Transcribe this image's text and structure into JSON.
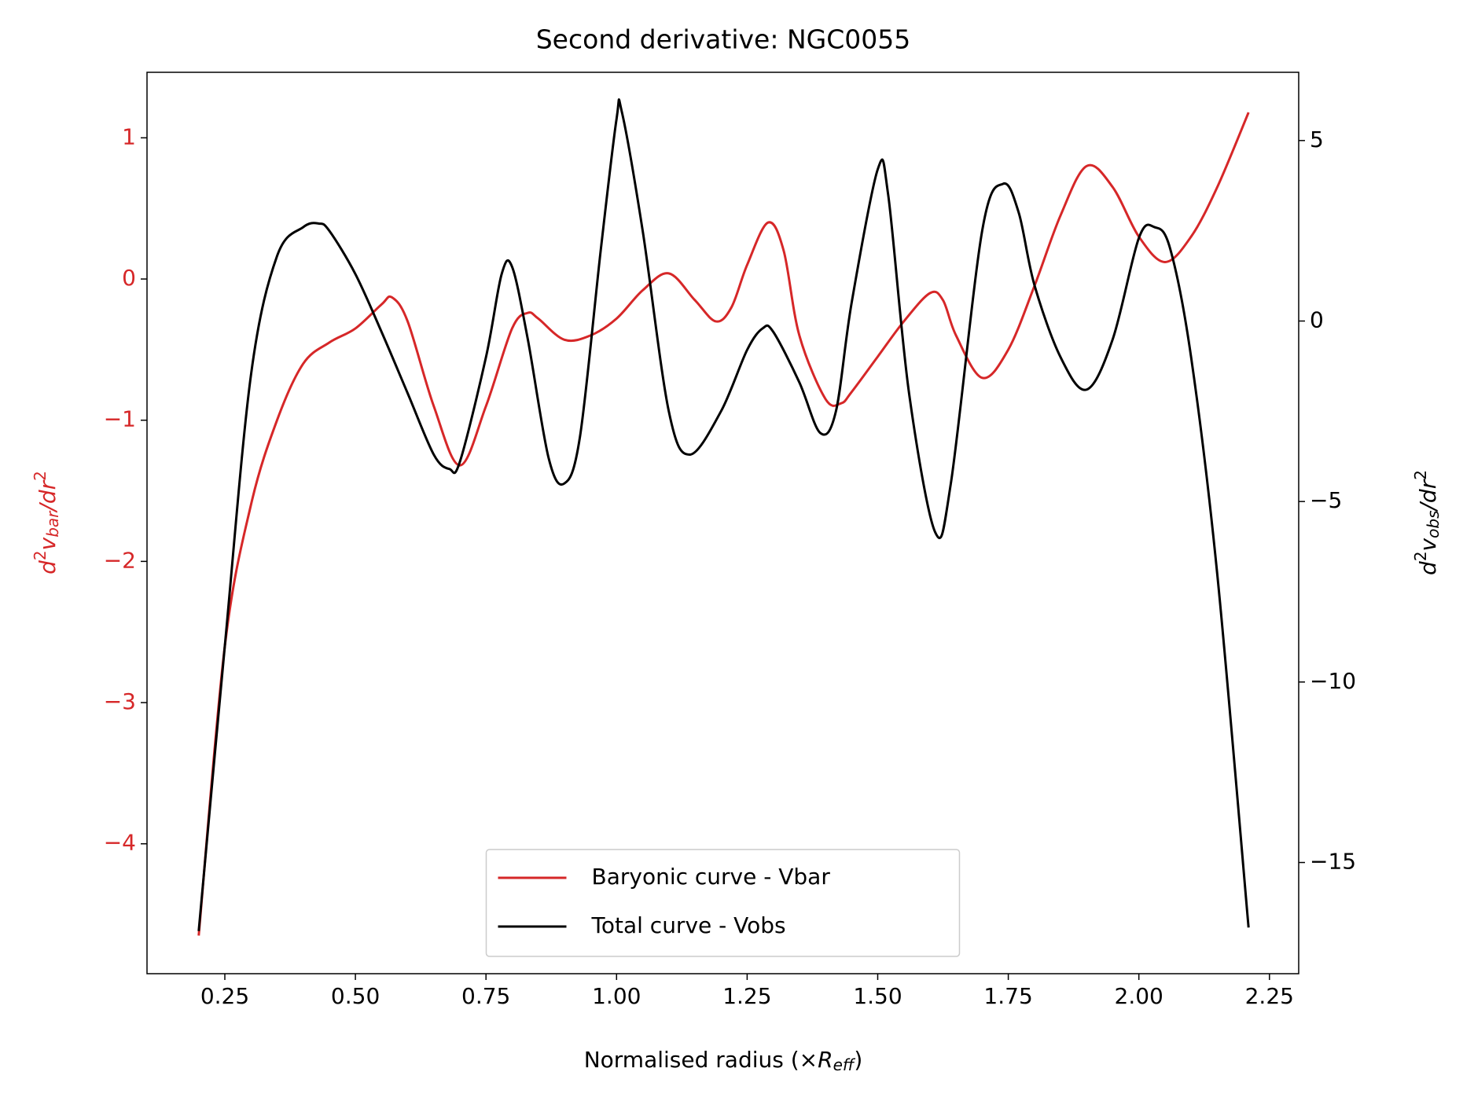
{
  "chart_data": {
    "type": "line",
    "title": "Second derivative: NGC0055",
    "xlabel": [
      "Normalised radius (×",
      "R",
      "eff",
      ")"
    ],
    "ylabel": [
      "d",
      "2",
      "v",
      "bar",
      "/dr",
      "2"
    ],
    "y2label": [
      "d",
      "2",
      "v",
      "obs",
      "/dr",
      "2"
    ],
    "xlim": [
      0.101,
      2.306
    ],
    "ylim": [
      -4.92,
      1.464
    ],
    "y2lim": [
      -18.08,
      6.89
    ],
    "xticks": [
      {
        "value": 0.25,
        "label": "0.25"
      },
      {
        "value": 0.5,
        "label": "0.50"
      },
      {
        "value": 0.75,
        "label": "0.75"
      },
      {
        "value": 1,
        "label": "1.00"
      },
      {
        "value": 1.25,
        "label": "1.25"
      },
      {
        "value": 1.5,
        "label": "1.50"
      },
      {
        "value": 1.75,
        "label": "1.75"
      },
      {
        "value": 2,
        "label": "2.00"
      },
      {
        "value": 2.25,
        "label": "2.25"
      }
    ],
    "yticks": [
      {
        "value": -4,
        "label": "−4"
      },
      {
        "value": -3,
        "label": "−3"
      },
      {
        "value": -2,
        "label": "−2"
      },
      {
        "value": -1,
        "label": "−1"
      },
      0,
      1
    ],
    "y2ticks": [
      {
        "value": -15,
        "label": "−15"
      },
      {
        "value": -10,
        "label": "−10"
      },
      {
        "value": -5,
        "label": "−5"
      },
      0,
      5
    ],
    "legend": "lower center",
    "series": [
      {
        "name": "Baryonic curve - Vbar",
        "color": "#d62728",
        "axis": "y",
        "x": [
          0.2,
          0.25,
          0.3,
          0.35,
          0.4,
          0.45,
          0.5,
          0.55,
          0.57,
          0.6,
          0.65,
          0.7,
          0.75,
          0.8,
          0.83,
          0.85,
          0.9,
          0.95,
          1.0,
          1.05,
          1.1,
          1.15,
          1.19,
          1.22,
          1.25,
          1.29,
          1.32,
          1.35,
          1.4,
          1.43,
          1.45,
          1.5,
          1.55,
          1.6,
          1.625,
          1.65,
          1.7,
          1.75,
          1.8,
          1.85,
          1.9,
          1.95,
          2.0,
          2.05,
          2.1,
          2.15,
          2.21
        ],
        "values": [
          -4.65,
          -2.6,
          -1.6,
          -1.0,
          -0.6,
          -0.45,
          -0.35,
          -0.18,
          -0.13,
          -0.3,
          -0.9,
          -1.32,
          -0.9,
          -0.35,
          -0.24,
          -0.28,
          -0.43,
          -0.4,
          -0.28,
          -0.08,
          0.04,
          -0.15,
          -0.3,
          -0.2,
          0.1,
          0.4,
          0.2,
          -0.4,
          -0.85,
          -0.88,
          -0.8,
          -0.55,
          -0.3,
          -0.1,
          -0.15,
          -0.4,
          -0.7,
          -0.5,
          -0.05,
          0.45,
          0.8,
          0.65,
          0.3,
          0.12,
          0.3,
          0.65,
          1.18
        ]
      },
      {
        "name": "Total curve - Vobs",
        "color": "#000000",
        "axis": "y2",
        "x": [
          0.2,
          0.25,
          0.3,
          0.35,
          0.4,
          0.43,
          0.45,
          0.5,
          0.55,
          0.6,
          0.65,
          0.68,
          0.7,
          0.75,
          0.78,
          0.8,
          0.83,
          0.87,
          0.9,
          0.93,
          0.97,
          1.0,
          1.01,
          1.05,
          1.1,
          1.14,
          1.2,
          1.25,
          1.28,
          1.3,
          1.35,
          1.39,
          1.42,
          1.45,
          1.5,
          1.52,
          1.56,
          1.61,
          1.64,
          1.7,
          1.74,
          1.77,
          1.8,
          1.85,
          1.9,
          1.95,
          2.0,
          2.03,
          2.06,
          2.1,
          2.15,
          2.21
        ],
        "values": [
          -16.9,
          -9,
          -1.5,
          1.8,
          2.6,
          2.7,
          2.5,
          1.3,
          -0.3,
          -2.0,
          -3.7,
          -4.1,
          -3.9,
          -1.0,
          1.3,
          1.5,
          -0.5,
          -3.8,
          -4.5,
          -3.2,
          2.0,
          5.6,
          5.8,
          2.5,
          -2.5,
          -3.7,
          -2.5,
          -0.8,
          -0.2,
          -0.3,
          -1.7,
          -3.1,
          -2.5,
          0.5,
          4.2,
          3.5,
          -2,
          -5.85,
          -4.5,
          2.5,
          3.8,
          3.0,
          1.0,
          -1.0,
          -1.9,
          -0.5,
          2.3,
          2.6,
          2.0,
          -1.0,
          -7,
          -16.8
        ]
      }
    ]
  }
}
